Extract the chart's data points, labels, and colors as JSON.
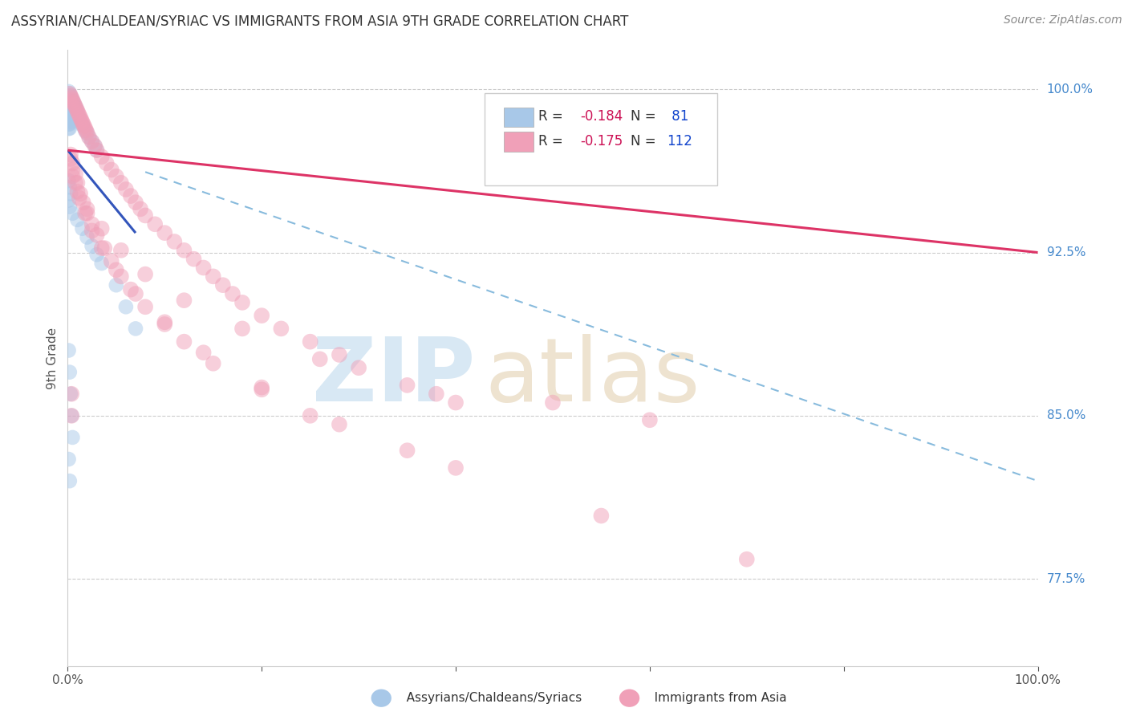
{
  "title": "ASSYRIAN/CHALDEAN/SYRIAC VS IMMIGRANTS FROM ASIA 9TH GRADE CORRELATION CHART",
  "source": "Source: ZipAtlas.com",
  "ylabel": "9th Grade",
  "ylabel_right_labels": [
    "100.0%",
    "92.5%",
    "85.0%",
    "77.5%"
  ],
  "ylabel_right_values": [
    1.0,
    0.925,
    0.85,
    0.775
  ],
  "blue_color": "#a8c8e8",
  "pink_color": "#f0a0b8",
  "trend_blue_color": "#3355bb",
  "trend_pink_color": "#dd3366",
  "dashed_line_color": "#88bbdd",
  "xlim": [
    0.0,
    1.0
  ],
  "ylim": [
    0.735,
    1.018
  ],
  "blue_trend": [
    0.0,
    0.07,
    0.972,
    0.934
  ],
  "pink_trend": [
    0.0,
    1.0,
    0.972,
    0.925
  ],
  "dashed_trend": [
    0.08,
    1.0,
    0.962,
    0.82
  ],
  "blue_scatter_x": [
    0.001,
    0.001,
    0.001,
    0.001,
    0.001,
    0.001,
    0.001,
    0.001,
    0.001,
    0.001,
    0.002,
    0.002,
    0.002,
    0.002,
    0.002,
    0.002,
    0.002,
    0.002,
    0.002,
    0.003,
    0.003,
    0.003,
    0.003,
    0.003,
    0.003,
    0.003,
    0.004,
    0.004,
    0.004,
    0.004,
    0.004,
    0.005,
    0.005,
    0.005,
    0.005,
    0.006,
    0.006,
    0.006,
    0.007,
    0.007,
    0.007,
    0.008,
    0.008,
    0.009,
    0.009,
    0.01,
    0.01,
    0.012,
    0.013,
    0.015,
    0.016,
    0.018,
    0.02,
    0.022,
    0.025,
    0.028,
    0.03,
    0.001,
    0.002,
    0.003,
    0.001,
    0.002,
    0.005,
    0.01,
    0.015,
    0.02,
    0.025,
    0.03,
    0.035,
    0.05,
    0.06,
    0.07,
    0.001,
    0.002,
    0.003,
    0.004,
    0.005,
    0.001,
    0.002
  ],
  "blue_scatter_y": [
    0.999,
    0.997,
    0.996,
    0.994,
    0.992,
    0.99,
    0.988,
    0.986,
    0.984,
    0.982,
    0.998,
    0.996,
    0.994,
    0.992,
    0.99,
    0.988,
    0.986,
    0.984,
    0.982,
    0.997,
    0.995,
    0.993,
    0.991,
    0.989,
    0.987,
    0.985,
    0.996,
    0.994,
    0.992,
    0.99,
    0.988,
    0.995,
    0.993,
    0.991,
    0.989,
    0.994,
    0.992,
    0.99,
    0.993,
    0.991,
    0.989,
    0.992,
    0.99,
    0.991,
    0.989,
    0.99,
    0.988,
    0.987,
    0.986,
    0.984,
    0.983,
    0.981,
    0.98,
    0.978,
    0.976,
    0.974,
    0.972,
    0.958,
    0.955,
    0.952,
    0.949,
    0.946,
    0.943,
    0.94,
    0.936,
    0.932,
    0.928,
    0.924,
    0.92,
    0.91,
    0.9,
    0.89,
    0.88,
    0.87,
    0.86,
    0.85,
    0.84,
    0.83,
    0.82
  ],
  "pink_scatter_x": [
    0.002,
    0.003,
    0.004,
    0.005,
    0.006,
    0.007,
    0.008,
    0.009,
    0.01,
    0.011,
    0.012,
    0.013,
    0.014,
    0.015,
    0.016,
    0.017,
    0.018,
    0.019,
    0.02,
    0.022,
    0.025,
    0.028,
    0.03,
    0.035,
    0.04,
    0.045,
    0.05,
    0.055,
    0.06,
    0.065,
    0.07,
    0.075,
    0.08,
    0.09,
    0.1,
    0.11,
    0.12,
    0.13,
    0.14,
    0.15,
    0.16,
    0.17,
    0.18,
    0.2,
    0.22,
    0.25,
    0.28,
    0.3,
    0.35,
    0.4,
    0.003,
    0.005,
    0.008,
    0.01,
    0.013,
    0.016,
    0.02,
    0.025,
    0.03,
    0.038,
    0.045,
    0.055,
    0.065,
    0.08,
    0.1,
    0.12,
    0.15,
    0.2,
    0.25,
    0.35,
    0.003,
    0.005,
    0.008,
    0.012,
    0.018,
    0.025,
    0.035,
    0.05,
    0.07,
    0.1,
    0.14,
    0.2,
    0.28,
    0.4,
    0.55,
    0.7,
    0.005,
    0.01,
    0.02,
    0.035,
    0.055,
    0.08,
    0.12,
    0.18,
    0.26,
    0.38,
    0.004,
    0.004,
    0.5,
    0.6
  ],
  "pink_scatter_y": [
    0.998,
    0.997,
    0.996,
    0.995,
    0.994,
    0.993,
    0.992,
    0.991,
    0.99,
    0.989,
    0.988,
    0.987,
    0.986,
    0.985,
    0.984,
    0.983,
    0.982,
    0.981,
    0.98,
    0.978,
    0.976,
    0.974,
    0.972,
    0.969,
    0.966,
    0.963,
    0.96,
    0.957,
    0.954,
    0.951,
    0.948,
    0.945,
    0.942,
    0.938,
    0.934,
    0.93,
    0.926,
    0.922,
    0.918,
    0.914,
    0.91,
    0.906,
    0.902,
    0.896,
    0.89,
    0.884,
    0.878,
    0.872,
    0.864,
    0.856,
    0.97,
    0.966,
    0.961,
    0.957,
    0.952,
    0.948,
    0.943,
    0.938,
    0.933,
    0.927,
    0.921,
    0.914,
    0.908,
    0.9,
    0.892,
    0.884,
    0.874,
    0.862,
    0.85,
    0.834,
    0.968,
    0.963,
    0.957,
    0.95,
    0.943,
    0.935,
    0.927,
    0.917,
    0.906,
    0.893,
    0.879,
    0.863,
    0.846,
    0.826,
    0.804,
    0.784,
    0.96,
    0.953,
    0.945,
    0.936,
    0.926,
    0.915,
    0.903,
    0.89,
    0.876,
    0.86,
    0.86,
    0.85,
    0.856,
    0.848
  ]
}
